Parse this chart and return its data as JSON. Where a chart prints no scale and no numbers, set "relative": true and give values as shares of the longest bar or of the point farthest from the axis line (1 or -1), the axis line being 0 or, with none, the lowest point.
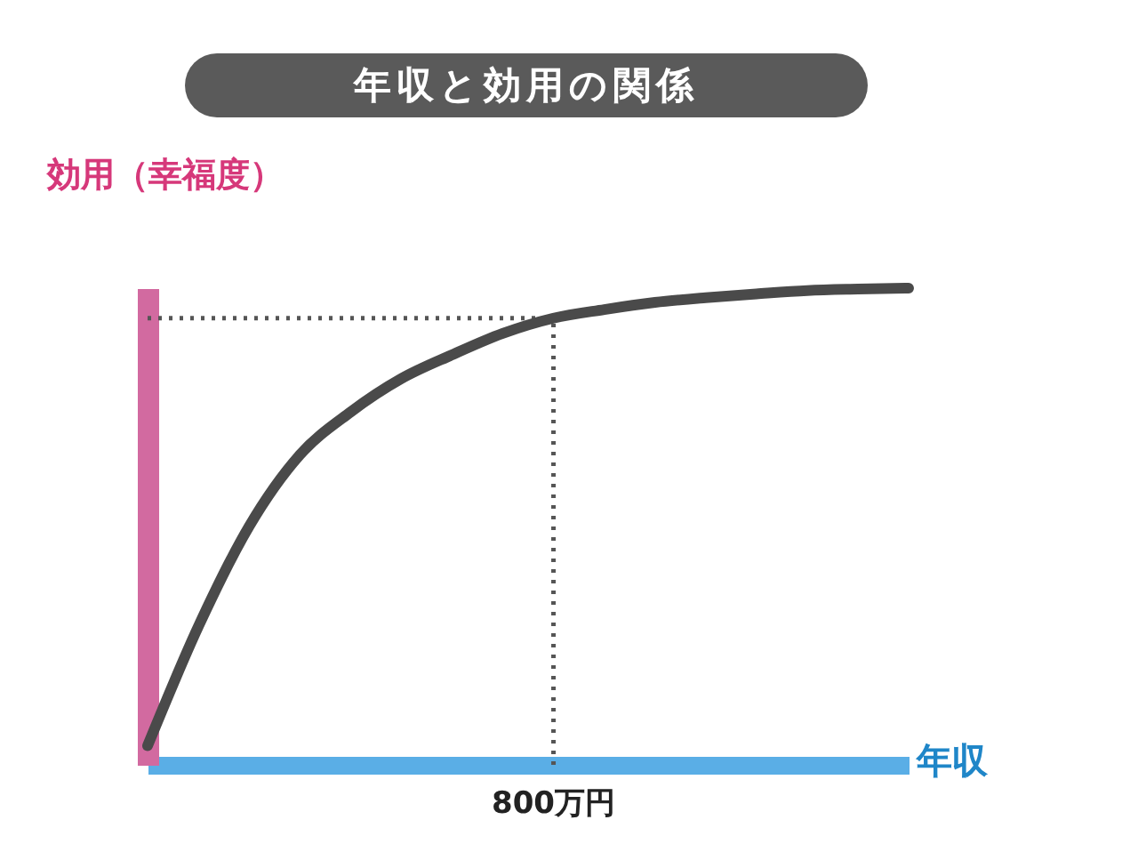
{
  "chart_data": {
    "type": "line",
    "title": "年収と効用の関係",
    "xlabel": "年収",
    "ylabel": "効用（幸福度）",
    "relative": true,
    "categories": [
      null,
      null,
      null,
      null,
      null,
      null,
      null,
      null,
      null,
      null,
      null,
      null,
      null,
      null,
      null,
      null
    ],
    "series": [
      {
        "color": "#4a4a4a",
        "values": [
          0.04,
          0.29,
          0.5,
          0.65,
          0.74,
          0.81,
          0.86,
          0.905,
          0.937,
          0.955,
          0.97,
          0.98,
          0.988,
          0.995,
          0.998,
          1
        ]
      }
    ],
    "ref_lines": [
      {
        "axis": "y",
        "value": 0.937,
        "line_style": "dotted",
        "color": "#555555"
      }
    ],
    "annotations": [
      "800万円"
    ]
  }
}
